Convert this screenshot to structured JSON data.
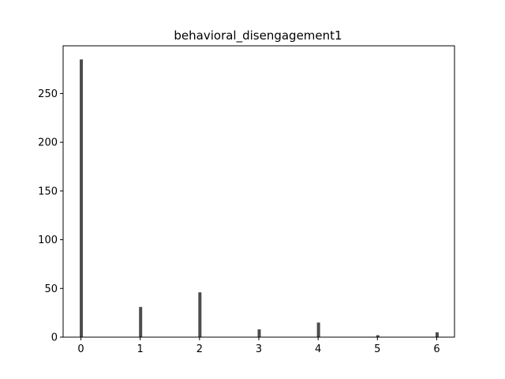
{
  "chart_data": {
    "type": "bar",
    "title": "behavioral_disengagement1",
    "xlabel": "",
    "ylabel": "",
    "categories": [
      0,
      1,
      2,
      3,
      4,
      5,
      6
    ],
    "values": [
      285,
      31,
      46,
      8,
      15,
      2,
      5
    ],
    "xlim": [
      -0.3,
      6.3
    ],
    "ylim": [
      0,
      299
    ],
    "xticks": [
      "0",
      "1",
      "2",
      "3",
      "4",
      "5",
      "6"
    ],
    "yticks": [
      "0",
      "50",
      "100",
      "150",
      "200",
      "250"
    ],
    "bar_color": "#4d4d4d",
    "grid": false,
    "legend": "none"
  }
}
